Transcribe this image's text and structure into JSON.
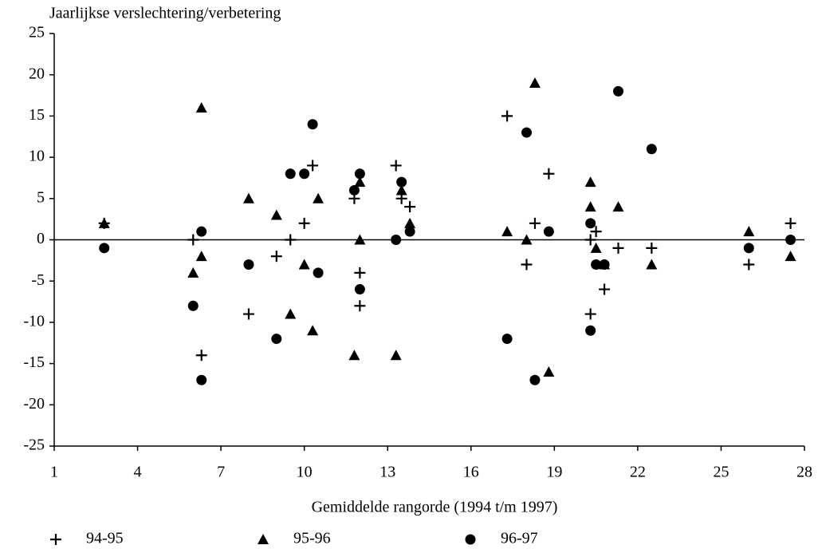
{
  "chart_data": {
    "type": "scatter",
    "title": "Jaarlijkse verslechtering/verbetering",
    "x_label": "Gemiddelde rangorde (1994 t/m 1997)",
    "xlim": [
      1,
      28
    ],
    "xticks": [
      1,
      4,
      7,
      10,
      13,
      16,
      19,
      22,
      25,
      28
    ],
    "ylim": [
      -25,
      25
    ],
    "yticks": [
      -25,
      -20,
      -15,
      -10,
      -5,
      0,
      5,
      10,
      15,
      20,
      25
    ],
    "zero_line": true,
    "series": [
      {
        "name": "94-95",
        "color": "#000000",
        "marker": "plus",
        "x": [
          2.8,
          6.0,
          6.3,
          8.0,
          9.0,
          9.5,
          10.0,
          10.3,
          11.8,
          12.0,
          12.0,
          13.3,
          13.5,
          13.8,
          17.3,
          18.0,
          18.3,
          18.8,
          20.3,
          20.3,
          20.5,
          20.8,
          21.3,
          22.5,
          26.0,
          27.5
        ],
        "values": [
          2,
          0,
          -14,
          -9,
          -2,
          0,
          2,
          9,
          5,
          -4,
          -8,
          9,
          5,
          4,
          15,
          -3,
          2,
          8,
          0,
          -9,
          1,
          -6,
          -1,
          -1,
          -3,
          2
        ]
      },
      {
        "name": "95-96",
        "color": "#000000",
        "marker": "triangle",
        "x": [
          2.8,
          6.0,
          6.3,
          6.3,
          8.0,
          9.0,
          9.5,
          10.0,
          10.3,
          10.5,
          11.8,
          12.0,
          12.0,
          13.3,
          13.5,
          13.8,
          17.3,
          18.0,
          18.3,
          18.8,
          20.3,
          20.3,
          20.5,
          20.8,
          21.3,
          22.5,
          26.0,
          27.5
        ],
        "values": [
          2,
          -4,
          16,
          -2,
          5,
          3,
          -9,
          -3,
          -11,
          5,
          -14,
          7,
          0,
          -14,
          6,
          2,
          1,
          0,
          19,
          -16,
          7,
          4,
          -1,
          -3,
          4,
          -3,
          1,
          -2
        ]
      },
      {
        "name": "96-97",
        "color": "#000000",
        "marker": "circle",
        "x": [
          2.8,
          6.0,
          6.3,
          6.3,
          8.0,
          9.0,
          9.5,
          10.0,
          10.3,
          10.5,
          11.8,
          12.0,
          12.0,
          13.3,
          13.5,
          13.8,
          17.3,
          18.0,
          18.3,
          18.8,
          20.3,
          20.3,
          20.5,
          20.8,
          21.3,
          22.5,
          26.0,
          27.5
        ],
        "values": [
          -1,
          -8,
          1,
          -17,
          -3,
          -12,
          8,
          8,
          14,
          -4,
          6,
          8,
          -6,
          0,
          7,
          1,
          -12,
          13,
          -17,
          1,
          2,
          -11,
          -3,
          -3,
          18,
          11,
          -1,
          0
        ]
      }
    ]
  }
}
